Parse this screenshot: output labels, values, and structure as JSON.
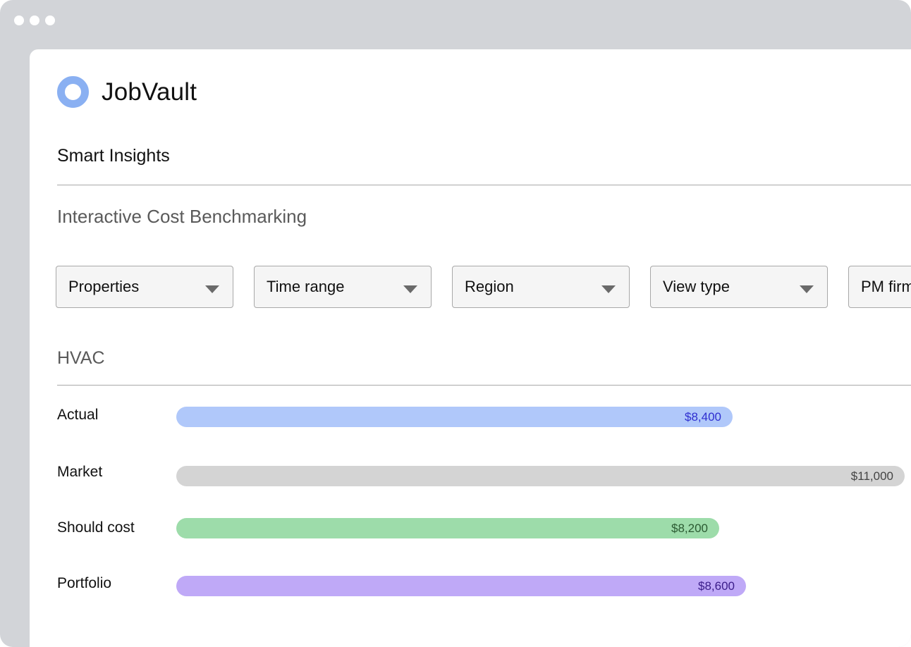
{
  "app": {
    "name": "JobVault",
    "section_title": "Smart Insights",
    "subtitle": "Interactive Cost Benchmarking"
  },
  "filters": [
    {
      "label": "Properties"
    },
    {
      "label": "Time range"
    },
    {
      "label": "Region"
    },
    {
      "label": "View type"
    },
    {
      "label": "PM firm"
    }
  ],
  "icons": {
    "logo": "ring-logo-icon",
    "dropdown": "caret-down-icon"
  },
  "colors": {
    "logo": "#8ab0f2",
    "actual": "#b0c8fa",
    "market": "#d4d4d4",
    "should_cost": "#9ddcaa",
    "portfolio": "#bfa9f7"
  },
  "chart_data": {
    "type": "bar",
    "orientation": "horizontal",
    "title": "HVAC",
    "categories": [
      "Actual",
      "Market",
      "Should cost",
      "Portfolio"
    ],
    "values": [
      8400,
      11000,
      8200,
      8600
    ],
    "value_labels": [
      "$8,400",
      "$11,000",
      "$8,200",
      "$8,600"
    ],
    "xlabel": "",
    "ylabel": "",
    "grid": false
  }
}
